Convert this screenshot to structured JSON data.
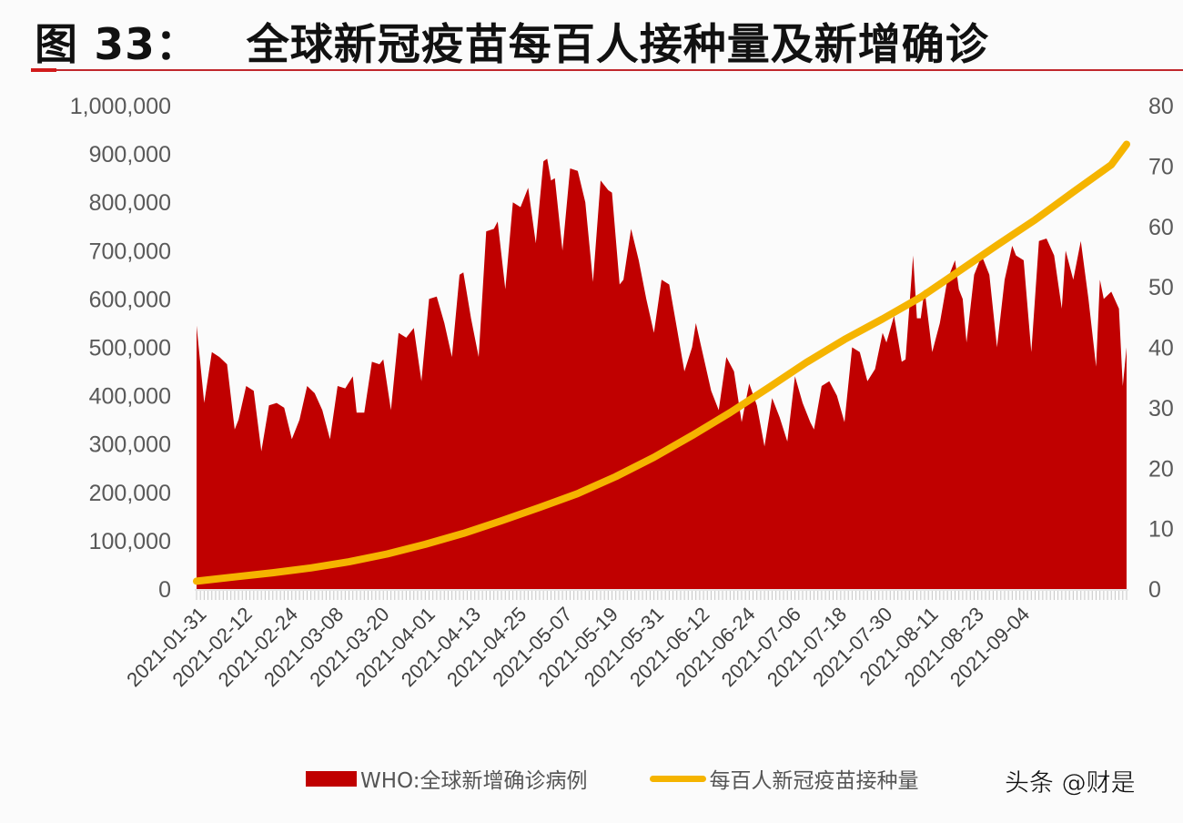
{
  "title": {
    "prefix": "图 33：",
    "text": "全球新冠疫苗每百人接种量及新增确诊"
  },
  "legend": {
    "series1": "WHO:全球新增确诊病例",
    "series2": "每百人新冠疫苗接种量"
  },
  "watermark": "头条 @财是",
  "colors": {
    "cases": "#c00000",
    "vaccine": "#f5b400",
    "title_rule": "#c0282d"
  },
  "chart_data": {
    "type": "area+line",
    "title": "全球新冠疫苗每百人接种量及新增确诊",
    "xlabel": "",
    "ylabel_left": "",
    "ylabel_right": "",
    "ylim_left": [
      0,
      1000000
    ],
    "ylim_right": [
      0,
      80
    ],
    "left_ticks": [
      "1,000,000",
      "900,000",
      "800,000",
      "700,000",
      "600,000",
      "500,000",
      "400,000",
      "300,000",
      "200,000",
      "100,000",
      "0"
    ],
    "right_ticks": [
      "80",
      "70",
      "60",
      "50",
      "40",
      "30",
      "20",
      "10",
      "0"
    ],
    "x_tick_labels": [
      "2021-01-31",
      "2021-02-12",
      "2021-02-24",
      "2021-03-08",
      "2021-03-20",
      "2021-04-01",
      "2021-04-13",
      "2021-04-25",
      "2021-05-07",
      "2021-05-19",
      "2021-05-31",
      "2021-06-12",
      "2021-06-24",
      "2021-07-06",
      "2021-07-18",
      "2021-07-30",
      "2021-08-11",
      "2021-08-23",
      "2021-09-04"
    ],
    "x_start": "2021-01-31",
    "x_end": "2021-09-14",
    "grid": false,
    "legend_position": "bottom",
    "series": [
      {
        "name": "WHO:全球新增确诊病例",
        "type": "area",
        "axis": "left",
        "points_day_value": [
          [
            0,
            545000
          ],
          [
            2,
            385000
          ],
          [
            4,
            490000
          ],
          [
            6,
            480000
          ],
          [
            8,
            465000
          ],
          [
            10,
            330000
          ],
          [
            11,
            350000
          ],
          [
            13,
            420000
          ],
          [
            15,
            410000
          ],
          [
            17,
            285000
          ],
          [
            19,
            380000
          ],
          [
            21,
            385000
          ],
          [
            23,
            375000
          ],
          [
            25,
            310000
          ],
          [
            27,
            350000
          ],
          [
            29,
            420000
          ],
          [
            31,
            405000
          ],
          [
            33,
            370000
          ],
          [
            35,
            310000
          ],
          [
            37,
            420000
          ],
          [
            39,
            415000
          ],
          [
            41,
            440000
          ],
          [
            42,
            365000
          ],
          [
            44,
            365000
          ],
          [
            46,
            470000
          ],
          [
            48,
            465000
          ],
          [
            49,
            475000
          ],
          [
            51,
            370000
          ],
          [
            53,
            530000
          ],
          [
            55,
            520000
          ],
          [
            57,
            540000
          ],
          [
            59,
            430000
          ],
          [
            61,
            600000
          ],
          [
            63,
            605000
          ],
          [
            65,
            550000
          ],
          [
            67,
            480000
          ],
          [
            69,
            650000
          ],
          [
            70,
            655000
          ],
          [
            72,
            560000
          ],
          [
            74,
            480000
          ],
          [
            76,
            740000
          ],
          [
            78,
            745000
          ],
          [
            79,
            760000
          ],
          [
            81,
            620000
          ],
          [
            83,
            800000
          ],
          [
            85,
            790000
          ],
          [
            87,
            830000
          ],
          [
            89,
            715000
          ],
          [
            91,
            885000
          ],
          [
            92,
            890000
          ],
          [
            93,
            845000
          ],
          [
            94,
            850000
          ],
          [
            96,
            700000
          ],
          [
            98,
            870000
          ],
          [
            100,
            865000
          ],
          [
            102,
            800000
          ],
          [
            104,
            635000
          ],
          [
            106,
            845000
          ],
          [
            108,
            825000
          ],
          [
            109,
            820000
          ],
          [
            111,
            630000
          ],
          [
            112,
            640000
          ],
          [
            114,
            745000
          ],
          [
            116,
            680000
          ],
          [
            118,
            600000
          ],
          [
            120,
            530000
          ],
          [
            122,
            640000
          ],
          [
            124,
            630000
          ],
          [
            126,
            540000
          ],
          [
            128,
            450000
          ],
          [
            130,
            500000
          ],
          [
            131,
            550000
          ],
          [
            133,
            480000
          ],
          [
            135,
            410000
          ],
          [
            137,
            370000
          ],
          [
            139,
            480000
          ],
          [
            141,
            450000
          ],
          [
            143,
            345000
          ],
          [
            145,
            425000
          ],
          [
            147,
            380000
          ],
          [
            149,
            295000
          ],
          [
            151,
            395000
          ],
          [
            153,
            355000
          ],
          [
            155,
            305000
          ],
          [
            157,
            440000
          ],
          [
            159,
            385000
          ],
          [
            161,
            345000
          ],
          [
            162,
            330000
          ],
          [
            164,
            420000
          ],
          [
            166,
            430000
          ],
          [
            168,
            400000
          ],
          [
            170,
            345000
          ],
          [
            172,
            500000
          ],
          [
            174,
            490000
          ],
          [
            176,
            430000
          ],
          [
            178,
            455000
          ],
          [
            180,
            530000
          ],
          [
            181,
            510000
          ],
          [
            183,
            565000
          ],
          [
            185,
            470000
          ],
          [
            186,
            475000
          ],
          [
            188,
            690000
          ],
          [
            189,
            560000
          ],
          [
            190,
            560000
          ],
          [
            191,
            620000
          ],
          [
            193,
            490000
          ],
          [
            195,
            550000
          ],
          [
            197,
            640000
          ],
          [
            199,
            680000
          ],
          [
            200,
            620000
          ],
          [
            201,
            600000
          ],
          [
            202,
            510000
          ],
          [
            204,
            650000
          ],
          [
            206,
            690000
          ],
          [
            208,
            650000
          ],
          [
            210,
            500000
          ],
          [
            212,
            640000
          ],
          [
            214,
            710000
          ],
          [
            215,
            690000
          ],
          [
            217,
            680000
          ],
          [
            219,
            490000
          ],
          [
            221,
            720000
          ],
          [
            223,
            725000
          ],
          [
            225,
            690000
          ],
          [
            227,
            580000
          ],
          [
            228,
            700000
          ],
          [
            230,
            640000
          ],
          [
            232,
            720000
          ],
          [
            234,
            600000
          ],
          [
            236,
            460000
          ],
          [
            237,
            640000
          ],
          [
            238,
            600000
          ],
          [
            240,
            615000
          ],
          [
            242,
            580000
          ],
          [
            243,
            420000
          ],
          [
            244,
            500000
          ]
        ]
      },
      {
        "name": "每百人新冠疫苗接种量",
        "type": "line",
        "axis": "right",
        "points_day_value": [
          [
            0,
            1.3
          ],
          [
            10,
            2.0
          ],
          [
            20,
            2.7
          ],
          [
            30,
            3.5
          ],
          [
            40,
            4.5
          ],
          [
            50,
            5.8
          ],
          [
            60,
            7.4
          ],
          [
            70,
            9.2
          ],
          [
            80,
            11.3
          ],
          [
            90,
            13.5
          ],
          [
            100,
            15.8
          ],
          [
            110,
            18.6
          ],
          [
            120,
            21.8
          ],
          [
            130,
            25.4
          ],
          [
            140,
            29.2
          ],
          [
            150,
            33.3
          ],
          [
            160,
            37.5
          ],
          [
            170,
            41.3
          ],
          [
            180,
            44.7
          ],
          [
            190,
            48.3
          ],
          [
            200,
            52.6
          ],
          [
            210,
            56.9
          ],
          [
            220,
            61.1
          ],
          [
            230,
            65.7
          ],
          [
            240,
            70.2
          ],
          [
            244,
            73.6
          ]
        ]
      }
    ]
  }
}
